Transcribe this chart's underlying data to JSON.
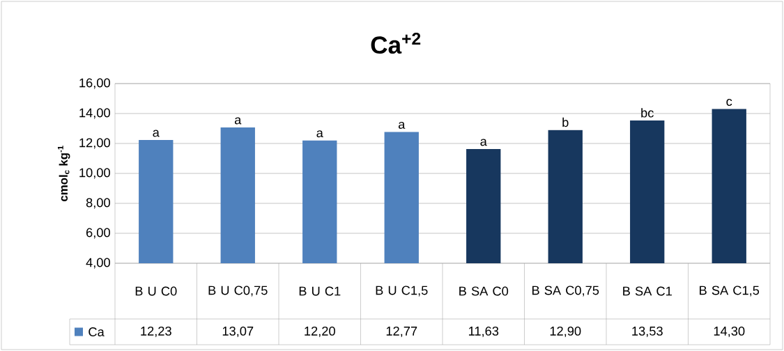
{
  "chart_data": {
    "type": "bar",
    "title": "Ca$^{+2}$",
    "ylabel": "cmol$_{c}$ kg$^{-1}$",
    "categories": [
      "B U C0",
      "B U C0,75",
      "B U C1",
      "B U C1,5",
      "B SA C0",
      "B SA C0,75",
      "B SA C1",
      "B SA C1,5"
    ],
    "series": [
      {
        "name": "Ca",
        "colors": [
          "#4f81bd",
          "#4f81bd",
          "#4f81bd",
          "#4f81bd",
          "#17375e",
          "#17375e",
          "#17375e",
          "#17375e"
        ],
        "values": [
          12.23,
          13.07,
          12.2,
          12.77,
          11.63,
          12.9,
          13.53,
          14.3
        ],
        "value_labels": [
          "12,23",
          "13,07",
          "12,20",
          "12,77",
          "11,63",
          "12,90",
          "13,53",
          "14,30"
        ]
      }
    ],
    "ylim": [
      4,
      16
    ],
    "yticks": [
      {
        "value": 4,
        "label": "4,00"
      },
      {
        "value": 6,
        "label": "6,00"
      },
      {
        "value": 8,
        "label": "8,00"
      },
      {
        "value": 10,
        "label": "10,00"
      },
      {
        "value": 12,
        "label": "12,00"
      },
      {
        "value": 14,
        "label": "14,00"
      },
      {
        "value": 16,
        "label": "16,00"
      }
    ],
    "grid": "y",
    "legend": "bottom left",
    "annotations": [
      {
        "text": "a",
        "x": "B U C0",
        "y": 12.23
      },
      {
        "text": "a",
        "x": "B U C0,75",
        "y": 13.07
      },
      {
        "text": "a",
        "x": "B U C1",
        "y": 12.2
      },
      {
        "text": "a",
        "x": "B U C1,5",
        "y": 12.77
      },
      {
        "text": "a",
        "x": "B SA C0",
        "y": 11.63
      },
      {
        "text": "b",
        "x": "B SA C0,75",
        "y": 12.9
      },
      {
        "text": "bc",
        "x": "B SA C1",
        "y": 13.53
      },
      {
        "text": "c",
        "x": "B SA C1,5",
        "y": 14.3
      }
    ]
  }
}
